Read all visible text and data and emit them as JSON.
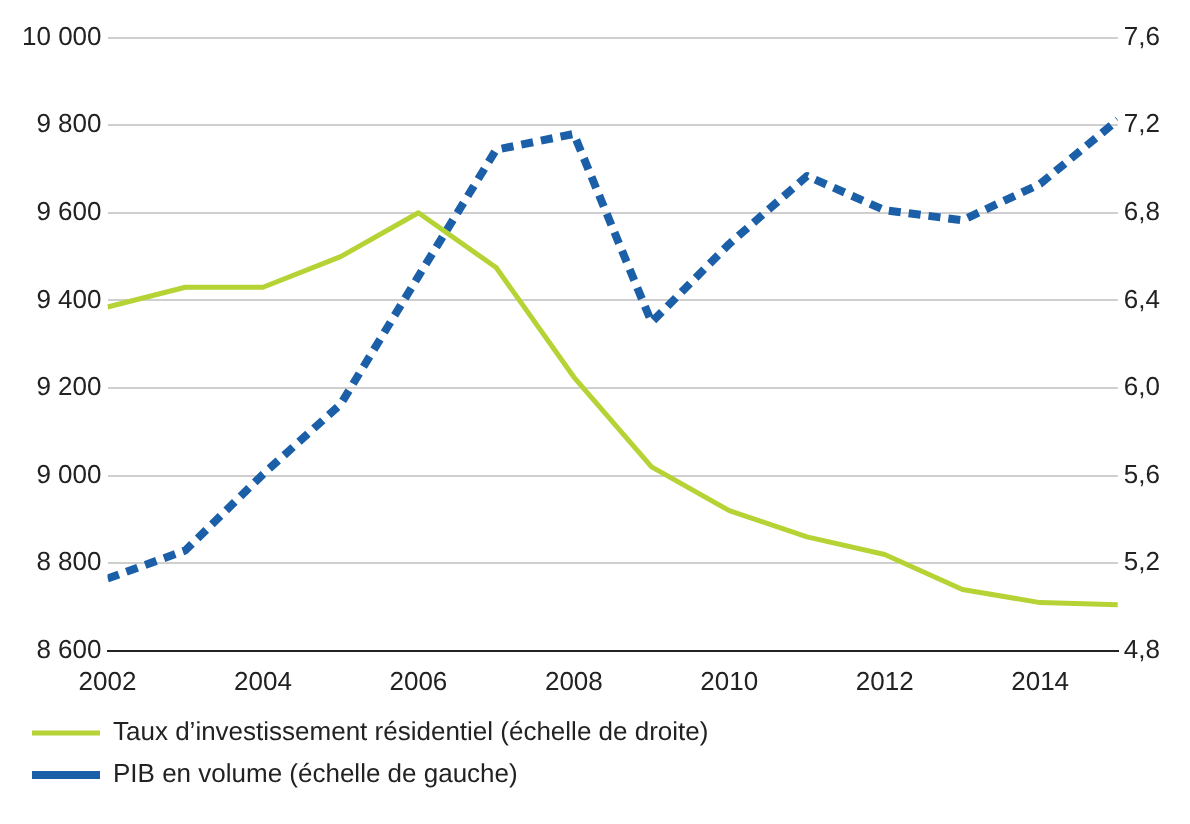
{
  "chart_data": {
    "type": "line",
    "x": [
      2002,
      2003,
      2004,
      2005,
      2006,
      2007,
      2008,
      2009,
      2010,
      2011,
      2012,
      2013,
      2014,
      2015
    ],
    "series": [
      {
        "name": "Taux d’investissement résidentiel (échelle de droite)",
        "color": "#b5d334",
        "axis": "y2",
        "line_style": "solid",
        "values": [
          6.37,
          6.46,
          6.46,
          6.6,
          6.8,
          6.55,
          6.05,
          5.64,
          5.44,
          5.32,
          5.24,
          5.08,
          5.02,
          5.01
        ]
      },
      {
        "name": "PIB en volume (échelle de gauche)",
        "color": "#1a5fa8",
        "axis": "y",
        "line_style": "dashed",
        "values": [
          8765,
          8829,
          9003,
          9163,
          9455,
          9744,
          9780,
          9350,
          9529,
          9684,
          9606,
          9583,
          9666,
          9812
        ]
      }
    ],
    "xlim": [
      2002,
      2015
    ],
    "xticks": [
      2002,
      2004,
      2006,
      2008,
      2010,
      2012,
      2014
    ],
    "ylim": [
      8600,
      10000
    ],
    "yticks": [
      {
        "value": 8600,
        "label": "8 600"
      },
      {
        "value": 8800,
        "label": "8 800"
      },
      {
        "value": 9000,
        "label": "9 000"
      },
      {
        "value": 9200,
        "label": "9 200"
      },
      {
        "value": 9400,
        "label": "9 400"
      },
      {
        "value": 9600,
        "label": "9 600"
      },
      {
        "value": 9800,
        "label": "9 800"
      },
      {
        "value": 10000,
        "label": "10 000"
      }
    ],
    "y2lim": [
      4.8,
      7.6
    ],
    "y2ticks": [
      {
        "value": 4.8,
        "label": "4,8"
      },
      {
        "value": 5.2,
        "label": "5,2"
      },
      {
        "value": 5.6,
        "label": "5,6"
      },
      {
        "value": 6,
        "label": "6,0"
      },
      {
        "value": 6.4,
        "label": "6,4"
      },
      {
        "value": 6.8,
        "label": "6,8"
      },
      {
        "value": 7.2,
        "label": "7,2"
      },
      {
        "value": 7.6,
        "label": "7,6"
      }
    ],
    "grid": "y",
    "legend": "bottom",
    "marker": "none"
  }
}
